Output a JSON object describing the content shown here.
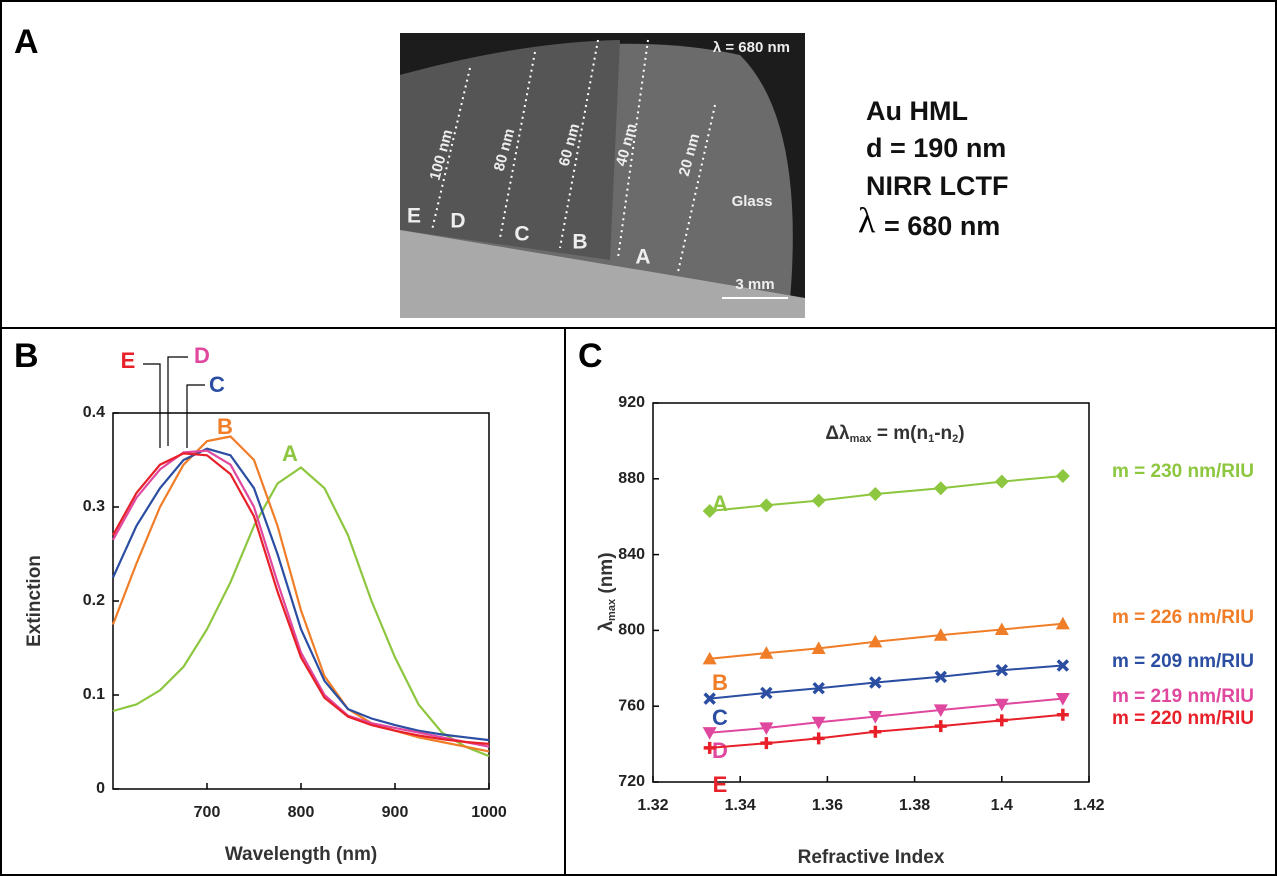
{
  "panels": [
    "A",
    "B",
    "C"
  ],
  "photo": {
    "wavelength": "λ = 680 nm",
    "thickness_labels": [
      "100 nm",
      "80 nm",
      "60 nm",
      "40 nm",
      "20 nm"
    ],
    "region_labels": [
      "E",
      "D",
      "C",
      "B",
      "A"
    ],
    "glass": "Glass",
    "scale": "3 mm"
  },
  "description": [
    "Au HML",
    "d = 190 nm",
    "NIRR LCTF",
    "= 680 nm"
  ],
  "description_symbol": "λ",
  "chart_data": [
    {
      "type": "line",
      "xlabel": "Wavelength (nm)",
      "ylabel": "Extinction",
      "x": [
        600,
        625,
        650,
        675,
        700,
        725,
        750,
        775,
        800,
        825,
        850,
        875,
        900,
        925,
        950,
        975,
        1000
      ],
      "xlim": [
        600,
        1000
      ],
      "xticks": [
        700,
        800,
        900,
        1000
      ],
      "ylim": [
        0,
        0.4
      ],
      "yticks": [
        0,
        0.1,
        0.2,
        0.3,
        0.4
      ],
      "series": [
        {
          "name": "A",
          "color": "#8dc63f",
          "values": [
            0.083,
            0.09,
            0.105,
            0.13,
            0.17,
            0.22,
            0.28,
            0.325,
            0.342,
            0.32,
            0.27,
            0.2,
            0.14,
            0.09,
            0.06,
            0.045,
            0.035
          ]
        },
        {
          "name": "B",
          "color": "#f07d28",
          "values": [
            0.175,
            0.24,
            0.3,
            0.345,
            0.37,
            0.375,
            0.35,
            0.28,
            0.19,
            0.12,
            0.085,
            0.07,
            0.062,
            0.055,
            0.05,
            0.045,
            0.04
          ]
        },
        {
          "name": "C",
          "color": "#2b4ea2",
          "values": [
            0.225,
            0.28,
            0.32,
            0.35,
            0.362,
            0.355,
            0.32,
            0.25,
            0.17,
            0.115,
            0.085,
            0.075,
            0.068,
            0.062,
            0.058,
            0.055,
            0.052
          ]
        },
        {
          "name": "D",
          "color": "#e0479e",
          "values": [
            0.265,
            0.31,
            0.34,
            0.358,
            0.36,
            0.345,
            0.3,
            0.22,
            0.145,
            0.1,
            0.078,
            0.07,
            0.065,
            0.06,
            0.055,
            0.05,
            0.045
          ]
        },
        {
          "name": "E",
          "color": "#e8202a",
          "values": [
            0.27,
            0.315,
            0.345,
            0.357,
            0.355,
            0.335,
            0.29,
            0.21,
            0.14,
            0.097,
            0.077,
            0.068,
            0.062,
            0.057,
            0.053,
            0.05,
            0.048
          ]
        }
      ]
    },
    {
      "type": "line",
      "xlabel": "Refractive Index",
      "ylabel_parts": [
        "λ",
        "max",
        " (nm)"
      ],
      "equation_parts": [
        "Δλ",
        "max",
        " = m(n",
        "1",
        "-n",
        "2",
        ")"
      ],
      "x": [
        1.333,
        1.346,
        1.358,
        1.371,
        1.386,
        1.4,
        1.414
      ],
      "xlim": [
        1.32,
        1.42
      ],
      "xticks": [
        1.32,
        1.34,
        1.36,
        1.38,
        1.4,
        1.42
      ],
      "ylim": [
        720,
        920
      ],
      "yticks": [
        720,
        760,
        800,
        840,
        880,
        920
      ],
      "series": [
        {
          "name": "A",
          "color": "#8dc63f",
          "marker": "diamond",
          "label": "m = 230 nm/RIU",
          "values": [
            863,
            866,
            868.5,
            872,
            875,
            878.5,
            881.5
          ]
        },
        {
          "name": "B",
          "color": "#f07d28",
          "marker": "triangle",
          "label": "m = 226 nm/RIU",
          "values": [
            785,
            788,
            790.5,
            794,
            797.5,
            800.5,
            803.5
          ]
        },
        {
          "name": "C",
          "color": "#2b4ea2",
          "marker": "x",
          "label": "m = 209 nm/RIU",
          "values": [
            764,
            767,
            769.5,
            772.5,
            775.5,
            779,
            781.5
          ]
        },
        {
          "name": "D",
          "color": "#e0479e",
          "marker": "triangle-down",
          "label": "m = 219 nm/RIU",
          "values": [
            746,
            748.5,
            751.5,
            754.5,
            758,
            761,
            764
          ]
        },
        {
          "name": "E",
          "color": "#e8202a",
          "marker": "plus",
          "label": "m = 220 nm/RIU",
          "values": [
            738,
            740.5,
            743,
            746.5,
            749.5,
            752.5,
            755.5
          ]
        }
      ]
    }
  ]
}
